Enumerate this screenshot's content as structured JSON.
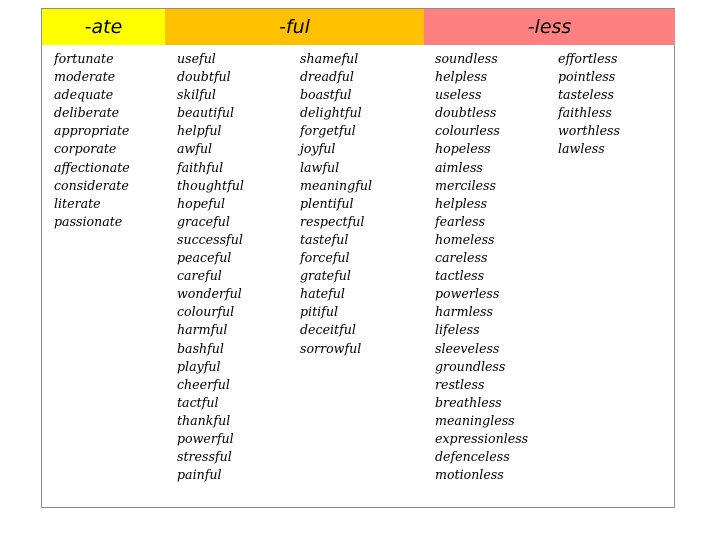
{
  "headers": {
    "ate": "-ate",
    "ful": "-ful",
    "less": "-less"
  },
  "colors": {
    "ate_header": "#ffff00",
    "ful_header": "#ffc000",
    "less_header": "#ff8080"
  },
  "columns": {
    "ate": [
      "fortunate",
      "moderate",
      "adequate",
      "deliberate",
      "appropriate",
      "corporate",
      "affectionate",
      "considerate",
      "literate",
      "passionate"
    ],
    "ful_1": [
      "useful",
      "doubtful",
      "skilful",
      "beautiful",
      "helpful",
      "awful",
      "faithful",
      "thoughtful",
      "hopeful",
      "graceful",
      "successful",
      "peaceful",
      "careful",
      "wonderful",
      "colourful",
      "harmful",
      "bashful",
      "playful",
      "cheerful",
      "tactful",
      "thankful",
      "powerful",
      "stressful",
      "painful"
    ],
    "ful_2": [
      "shameful",
      "dreadful",
      "boastful",
      "delightful",
      "forgetful",
      "joyful",
      "lawful",
      "meaningful",
      "plentiful",
      "respectful",
      "tasteful",
      "forceful",
      "grateful",
      "hateful",
      "pitiful",
      "deceitful",
      "sorrowful"
    ],
    "less_1": [
      "soundless",
      "helpless",
      "useless",
      "doubtless",
      "colourless",
      "hopeless",
      "aimless",
      "merciless",
      "helpless",
      "fearless",
      "homeless",
      "careless",
      "tactless",
      "powerless",
      "harmless",
      "lifeless",
      "sleeveless",
      "groundless",
      "restless",
      "breathless",
      "meaningless",
      "expressionless",
      "defenceless",
      "motionless"
    ],
    "less_2": [
      "effortless",
      "pointless",
      "tasteless",
      "faithless",
      "worthless",
      "lawless"
    ]
  }
}
